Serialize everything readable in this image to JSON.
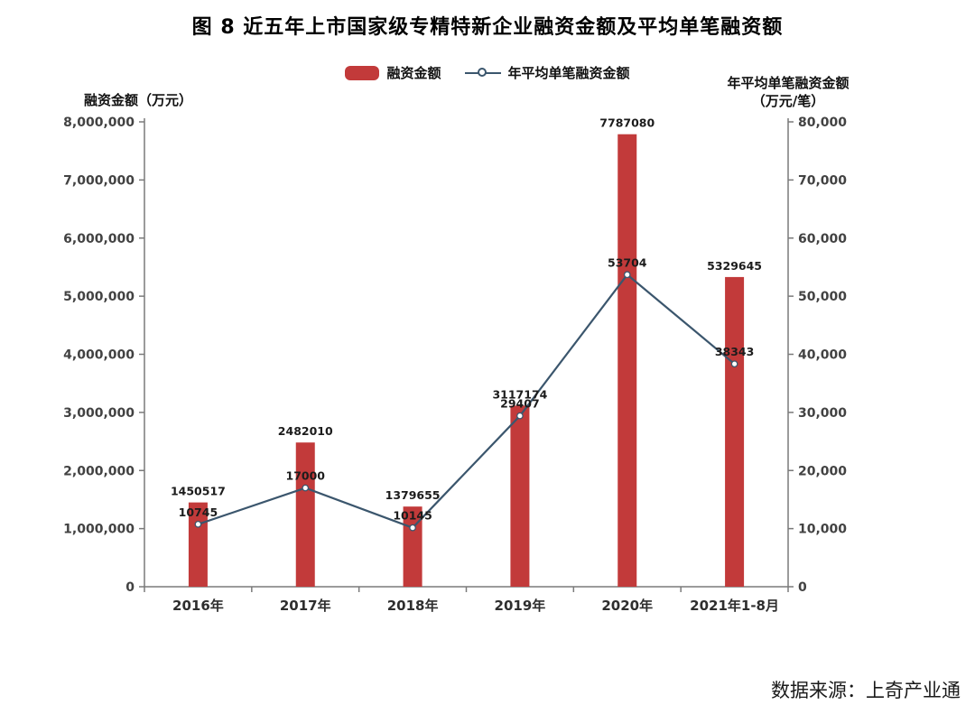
{
  "page": {
    "title": "图 8  近五年上市国家级专精特新企业融资金额及平均单笔融资额",
    "source": "数据来源：上奇产业通"
  },
  "legend": {
    "bar_label": "融资金额",
    "line_label": "年平均单笔融资金额"
  },
  "axes": {
    "left_title": "融资金额（万元）",
    "right_title_line1": "年平均单笔融资金额",
    "right_title_line2": "（万元/笔）"
  },
  "colors": {
    "bar": "#C23A3A",
    "line": "#3B566D",
    "marker_fill": "#FFFFFF",
    "axis": "#7a7a7a",
    "tick_label": "#424242",
    "data_label": "#1c1c1c"
  },
  "chart_data": {
    "type": "bar",
    "subtype": "bar-line-combo",
    "title": "图 8  近五年上市国家级专精特新企业融资金额及平均单笔融资额",
    "categories": [
      "2016年",
      "2017年",
      "2018年",
      "2019年",
      "2020年",
      "2021年1-8月"
    ],
    "series": [
      {
        "name": "融资金额",
        "type": "bar",
        "axis": "left",
        "values": [
          1450517,
          2482010,
          1379655,
          3117174,
          7787080,
          5329645
        ]
      },
      {
        "name": "年平均单笔融资金额",
        "type": "line",
        "axis": "right",
        "values": [
          10745,
          17000,
          10145,
          29407,
          53704,
          38343
        ]
      }
    ],
    "left_axis": {
      "title": "融资金额（万元）",
      "min": 0,
      "max": 8000000,
      "step": 1000000,
      "tick_labels": [
        "0",
        "1,000,000",
        "2,000,000",
        "3,000,000",
        "4,000,000",
        "5,000,000",
        "6,000,000",
        "7,000,000",
        "8,000,000"
      ]
    },
    "right_axis": {
      "title": "年平均单笔融资金额（万元/笔）",
      "min": 0,
      "max": 80000,
      "step": 10000,
      "tick_labels": [
        "0",
        "10,000",
        "20,000",
        "30,000",
        "40,000",
        "50,000",
        "60,000",
        "70,000",
        "80,000"
      ]
    },
    "grid": false,
    "legend_position": "top"
  }
}
